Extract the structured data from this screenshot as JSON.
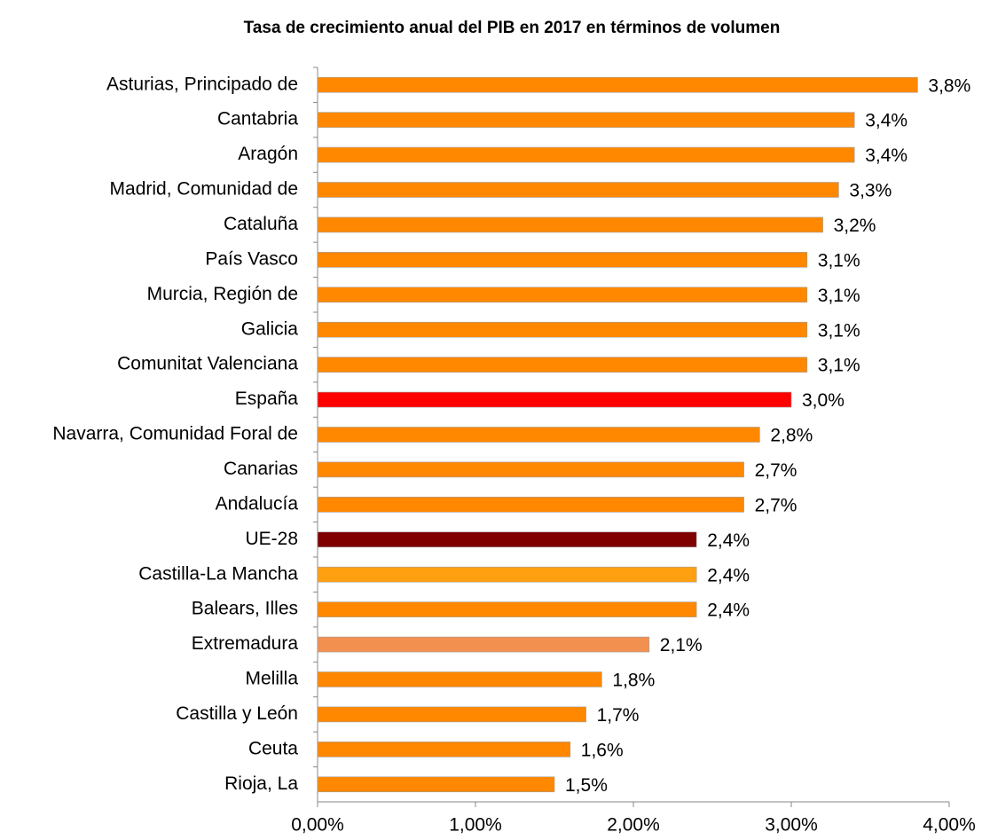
{
  "chart_data": {
    "type": "hbar",
    "title": "Tasa de crecimiento anual del PIB en 2017 en términos de volumen",
    "categories": [
      "Asturias, Principado de",
      "Cantabria",
      "Aragón",
      "Madrid, Comunidad de",
      "Cataluña",
      "País Vasco",
      "Murcia, Región de",
      "Galicia",
      "Comunitat Valenciana",
      "España",
      "Navarra, Comunidad Foral de",
      "Canarias",
      "Andalucía",
      "UE-28",
      "Castilla-La Mancha",
      "Balears, Illes",
      "Extremadura",
      "Melilla",
      "Castilla y León",
      "Ceuta",
      "Rioja, La"
    ],
    "values": [
      3.8,
      3.4,
      3.4,
      3.3,
      3.2,
      3.1,
      3.1,
      3.1,
      3.1,
      3.0,
      2.8,
      2.7,
      2.7,
      2.4,
      2.4,
      2.4,
      2.1,
      1.8,
      1.7,
      1.6,
      1.5
    ],
    "value_labels": [
      "3,8%",
      "3,4%",
      "3,4%",
      "3,3%",
      "3,2%",
      "3,1%",
      "3,1%",
      "3,1%",
      "3,1%",
      "3,0%",
      "2,8%",
      "2,7%",
      "2,7%",
      "2,4%",
      "2,4%",
      "2,4%",
      "2,1%",
      "1,8%",
      "1,7%",
      "1,6%",
      "1,5%"
    ],
    "colors": [
      "#ff8800",
      "#ff8800",
      "#ff8800",
      "#ff8800",
      "#ff8800",
      "#ff8800",
      "#ff8800",
      "#ff8800",
      "#ff8800",
      "#ff0000",
      "#ff8800",
      "#ff8800",
      "#ff8800",
      "#800000",
      "#ffa010",
      "#ff8800",
      "#f29050",
      "#ff8800",
      "#ff8800",
      "#ff8800",
      "#ff8800"
    ],
    "xlim": [
      0,
      4
    ],
    "xticks": [
      {
        "value": 0,
        "label": "0,00%"
      },
      {
        "value": 1,
        "label": "1,00%"
      },
      {
        "value": 2,
        "label": "2,00%"
      },
      {
        "value": 3,
        "label": "3,00%"
      },
      {
        "value": 4,
        "label": "4,00%"
      }
    ],
    "grid": false
  }
}
